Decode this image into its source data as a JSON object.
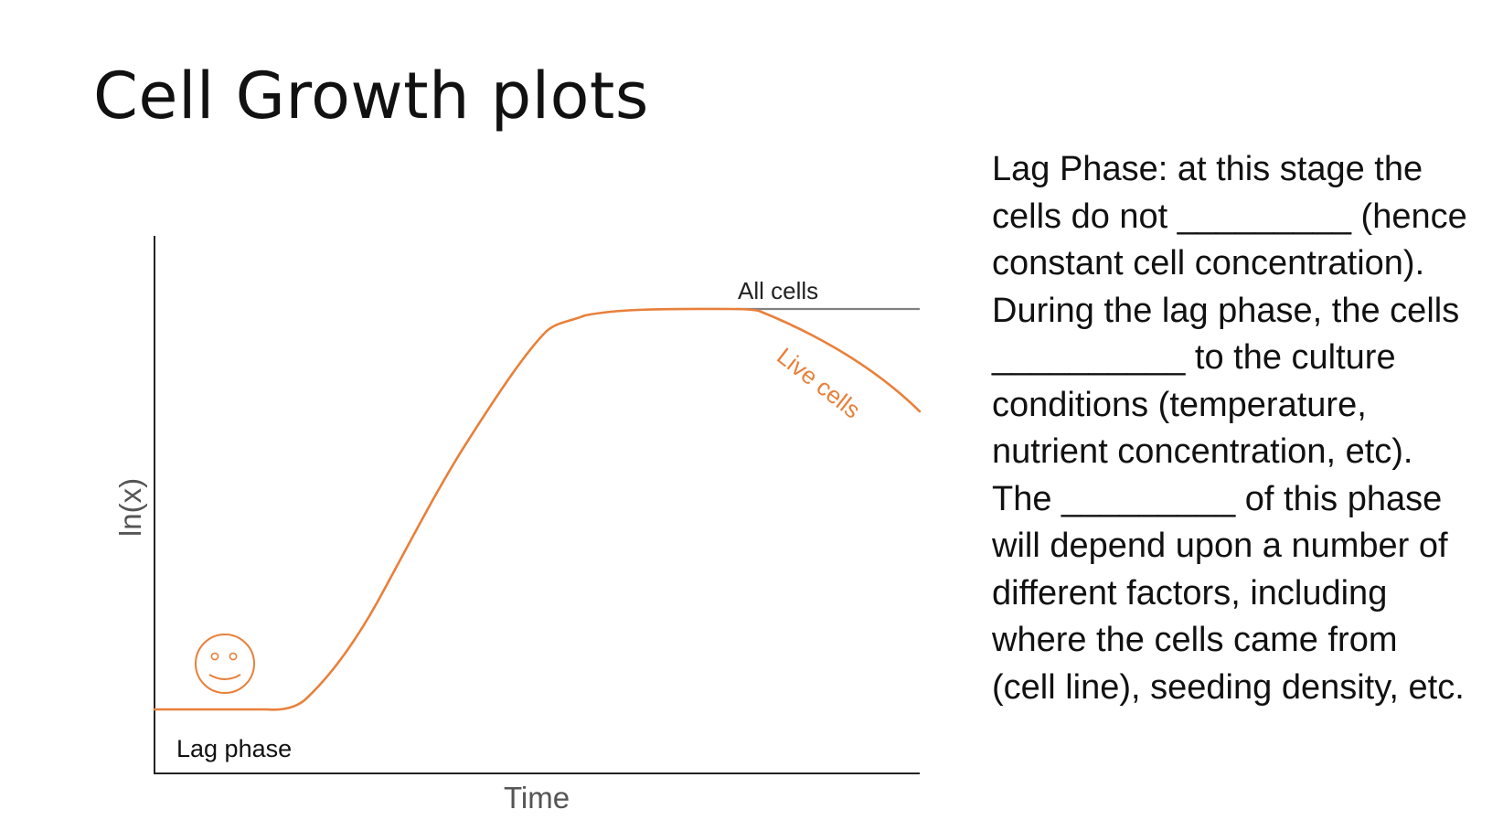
{
  "slide": {
    "title": "Cell Growth plots"
  },
  "plot": {
    "ylabel": "ln(x)",
    "xlabel": "Time",
    "labels": {
      "all_cells": "All cells",
      "live_cells": "Live cells",
      "lag_phase": "Lag phase"
    },
    "colors": {
      "live_curve": "#E8803B",
      "all_cells_line": "#808080",
      "axis": "#222222",
      "ylabel": "#555555"
    },
    "icon": "smiley-face-icon"
  },
  "description": {
    "lines": [
      "Lag Phase: at this stage the",
      "cells do not _________ (hence",
      "constant cell concentration).",
      "During the lag phase, the cells",
      "__________ to the culture",
      "conditions (temperature,",
      "nutrient concentration, etc).",
      "The _________ of this phase",
      "will depend upon a number of",
      "different factors, including",
      "where the cells came from",
      "(cell line), seeding density, etc."
    ]
  }
}
